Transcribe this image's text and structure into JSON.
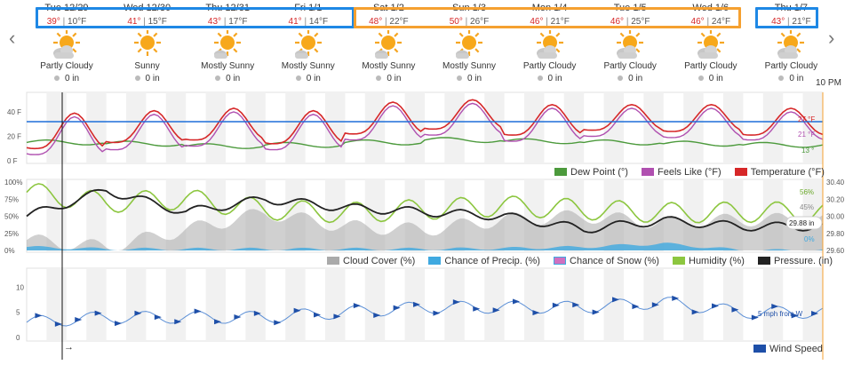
{
  "nav": {
    "prev": "‹",
    "next": "›"
  },
  "days": [
    {
      "label": "Tue 12/29",
      "hi": "39°",
      "lo": "10°F",
      "cond": "Partly Cloudy",
      "icon": "partly-cloudy-icon",
      "precip": "0 in"
    },
    {
      "label": "Wed 12/30",
      "hi": "41°",
      "lo": "15°F",
      "cond": "Sunny",
      "icon": "sunny-icon",
      "precip": "0 in"
    },
    {
      "label": "Thu 12/31",
      "hi": "43°",
      "lo": "17°F",
      "cond": "Mostly Sunny",
      "icon": "mostly-sunny-icon",
      "precip": "0 in"
    },
    {
      "label": "Fri 1/1",
      "hi": "41°",
      "lo": "14°F",
      "cond": "Mostly Sunny",
      "icon": "mostly-sunny-icon",
      "precip": "0 in"
    },
    {
      "label": "Sat 1/2",
      "hi": "48°",
      "lo": "22°F",
      "cond": "Mostly Sunny",
      "icon": "mostly-sunny-icon",
      "precip": "0 in"
    },
    {
      "label": "Sun 1/3",
      "hi": "50°",
      "lo": "26°F",
      "cond": "Mostly Sunny",
      "icon": "mostly-sunny-icon",
      "precip": "0 in"
    },
    {
      "label": "Mon 1/4",
      "hi": "46°",
      "lo": "21°F",
      "cond": "Partly Cloudy",
      "icon": "partly-cloudy-icon",
      "precip": "0 in"
    },
    {
      "label": "Tue 1/5",
      "hi": "46°",
      "lo": "25°F",
      "cond": "Partly Cloudy",
      "icon": "partly-cloudy-icon",
      "precip": "0 in"
    },
    {
      "label": "Wed 1/6",
      "hi": "46°",
      "lo": "24°F",
      "cond": "Partly Cloudy",
      "icon": "partly-cloudy-icon",
      "precip": "0 in"
    },
    {
      "label": "Thu 1/7",
      "hi": "43°",
      "lo": "21°F",
      "cond": "Partly Cloudy",
      "icon": "partly-cloudy-icon",
      "precip": "0 in"
    }
  ],
  "time_marker": "10 PM",
  "temp_chart": {
    "yticks": [
      "40 F",
      "20 F",
      "0 F"
    ],
    "end_labels": {
      "temperature": "27 °F",
      "feels_like": "21 °F",
      "dew_point": "13 °"
    },
    "legend": [
      "Dew Point (°)",
      "Feels Like (°F)",
      "Temperature (°F)"
    ],
    "colors": {
      "dew_point": "#4c9a3c",
      "feels_like": "#b050b0",
      "temperature": "#d62728",
      "reference_line": "#1e6fd9"
    }
  },
  "cloud_chart": {
    "yticks_left": [
      "100%",
      "75%",
      "50%",
      "25%",
      "0%"
    ],
    "yticks_right": [
      "30.40",
      "30.20",
      "30.00",
      "29.80",
      "29.60"
    ],
    "end_labels": {
      "humidity": "56%",
      "cloud": "45%",
      "pressure": "29.88 in",
      "precip": "0%"
    },
    "legend": [
      "Cloud Cover (%)",
      "Chance of Precip. (%)",
      "Chance of Snow (%)",
      "Humidity (%)",
      "Pressure. (in)"
    ],
    "colors": {
      "cloud": "#aaaaaa",
      "precip": "#3fa9e0",
      "snow": "#d070c0",
      "humidity": "#8cc63f",
      "pressure": "#222222"
    }
  },
  "wind_chart": {
    "yticks": [
      "10",
      "5",
      "0"
    ],
    "end_label": "5 mph from W",
    "legend": [
      "Wind Speed"
    ],
    "color": "#1e6fd9",
    "arrow_symbol": "→"
  },
  "chart_data": [
    {
      "type": "line",
      "title": "",
      "ylabel": "°F",
      "ylim": [
        0,
        50
      ],
      "categories": [
        "Tue 12/29",
        "Wed 12/30",
        "Thu 12/31",
        "Fri 1/1",
        "Sat 1/2",
        "Sun 1/3",
        "Mon 1/4",
        "Tue 1/5",
        "Wed 1/6",
        "Thu 1/7"
      ],
      "series": [
        {
          "name": "Temperature (°F)",
          "values": [
            39,
            41,
            43,
            41,
            48,
            50,
            46,
            46,
            46,
            43
          ],
          "lows": [
            10,
            15,
            17,
            14,
            22,
            26,
            21,
            25,
            24,
            21
          ]
        },
        {
          "name": "Feels Like (°F)",
          "values": [
            36,
            38,
            40,
            38,
            45,
            47,
            43,
            43,
            43,
            40
          ],
          "lows": [
            5,
            9,
            12,
            9,
            17,
            21,
            16,
            20,
            19,
            17
          ]
        },
        {
          "name": "Dew Point (°)",
          "values": [
            15,
            14,
            12,
            13,
            15,
            17,
            16,
            15,
            14,
            13
          ]
        }
      ],
      "reference_line": 32
    },
    {
      "type": "line",
      "title": "",
      "ylim": [
        0,
        100
      ],
      "categories": [
        "Tue 12/29",
        "Wed 12/30",
        "Thu 12/31",
        "Fri 1/1",
        "Sat 1/2",
        "Sun 1/3",
        "Mon 1/4",
        "Tue 1/5",
        "Wed 1/6",
        "Thu 1/7"
      ],
      "series": [
        {
          "name": "Cloud Cover (%)",
          "values": [
            15,
            5,
            30,
            55,
            35,
            30,
            45,
            50,
            40,
            45
          ]
        },
        {
          "name": "Chance of Precip. (%)",
          "values": [
            5,
            2,
            2,
            2,
            2,
            2,
            3,
            5,
            10,
            0
          ]
        },
        {
          "name": "Chance of Snow (%)",
          "values": [
            0,
            0,
            0,
            0,
            0,
            0,
            0,
            0,
            0,
            0
          ]
        },
        {
          "name": "Humidity (%)",
          "values": [
            85,
            70,
            75,
            60,
            55,
            60,
            65,
            60,
            55,
            56
          ]
        },
        {
          "name": "Pressure. (in)",
          "values": [
            30.0,
            30.3,
            30.05,
            30.2,
            30.1,
            30.05,
            30.0,
            29.85,
            29.95,
            29.88
          ]
        }
      ]
    },
    {
      "type": "line",
      "title": "",
      "ylabel": "mph",
      "ylim": [
        0,
        12
      ],
      "categories": [
        "Tue 12/29",
        "Wed 12/30",
        "Thu 12/31",
        "Fri 1/1",
        "Sat 1/2",
        "Sun 1/3",
        "Mon 1/4",
        "Tue 1/5",
        "Wed 1/6",
        "Thu 1/7"
      ],
      "series": [
        {
          "name": "Wind Speed",
          "values": [
            3,
            4,
            4,
            4,
            5,
            6,
            6,
            6,
            7,
            5
          ]
        }
      ]
    }
  ]
}
